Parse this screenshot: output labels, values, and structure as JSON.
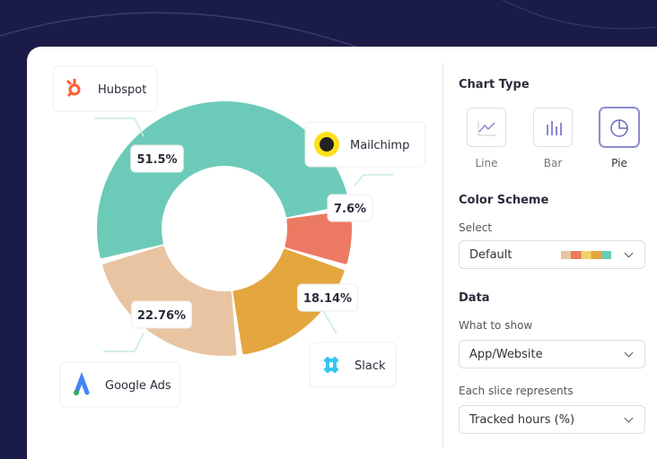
{
  "chart_data": {
    "type": "pie",
    "categories": [
      "Hubspot",
      "Mailchimp",
      "Slack",
      "Google Ads"
    ],
    "values": [
      51.5,
      7.6,
      18.14,
      22.76
    ],
    "value_labels": [
      "51.5%",
      "7.6%",
      "18.14%",
      "22.76%"
    ],
    "colors": [
      "#6ccbb8",
      "#ec7a62",
      "#e4a63f",
      "#e9c4a2"
    ]
  },
  "panel": {
    "chart_type_title": "Chart Type",
    "chart_types": [
      "Line",
      "Bar",
      "Pie"
    ],
    "selected_chart_type": "Pie",
    "color_scheme_title": "Color Scheme",
    "select_label": "Select",
    "select_value": "Default",
    "data_title": "Data",
    "what_to_show_label": "What to show",
    "what_to_show_value": "App/Website",
    "slice_label": "Each slice represents",
    "slice_value": "Tracked hours (%)"
  }
}
